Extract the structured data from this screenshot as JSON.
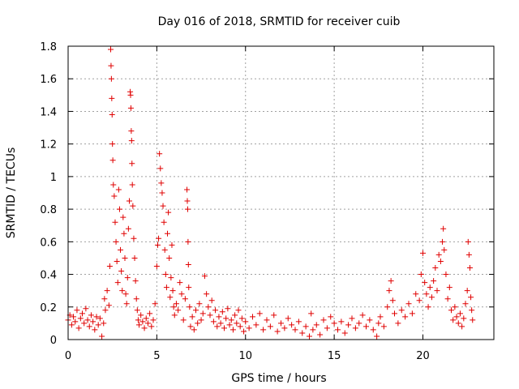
{
  "chart_data": {
    "type": "scatter",
    "title": "Day 016 of 2018, SRMTID for receiver cuib",
    "xlabel": "GPS time / hours",
    "ylabel": "SRMTID / TECUs",
    "xlim": [
      0,
      24
    ],
    "ylim": [
      0,
      1.8
    ],
    "x_ticks": [
      0,
      5,
      10,
      15,
      20
    ],
    "x_tick_labels": [
      "0",
      "5",
      "10",
      "15",
      "20"
    ],
    "y_ticks": [
      0,
      0.2,
      0.4,
      0.6,
      0.8,
      1.0,
      1.2,
      1.4,
      1.6,
      1.8
    ],
    "y_tick_labels": [
      "0",
      "0.2",
      "0.4",
      "0.6",
      "0.8",
      "1",
      "1.2",
      "1.4",
      "1.6",
      "1.8"
    ],
    "grid": true,
    "marker": "+",
    "marker_color": "#e00000",
    "series": [
      {
        "name": "SRMTID",
        "points": [
          [
            0.0,
            0.12
          ],
          [
            0.1,
            0.15
          ],
          [
            0.2,
            0.09
          ],
          [
            0.3,
            0.14
          ],
          [
            0.4,
            0.11
          ],
          [
            0.5,
            0.18
          ],
          [
            0.6,
            0.07
          ],
          [
            0.7,
            0.13
          ],
          [
            0.8,
            0.16
          ],
          [
            0.9,
            0.1
          ],
          [
            1.0,
            0.19
          ],
          [
            1.1,
            0.12
          ],
          [
            1.2,
            0.08
          ],
          [
            1.3,
            0.15
          ],
          [
            1.4,
            0.11
          ],
          [
            1.5,
            0.06
          ],
          [
            1.6,
            0.14
          ],
          [
            1.7,
            0.09
          ],
          [
            1.8,
            0.13
          ],
          [
            1.9,
            0.02
          ],
          [
            2.0,
            0.1
          ],
          [
            2.05,
            0.25
          ],
          [
            2.1,
            0.18
          ],
          [
            2.2,
            0.3
          ],
          [
            2.3,
            0.21
          ],
          [
            2.35,
            0.45
          ],
          [
            2.4,
            1.78
          ],
          [
            2.42,
            1.68
          ],
          [
            2.44,
            1.6
          ],
          [
            2.46,
            1.48
          ],
          [
            2.48,
            1.38
          ],
          [
            2.5,
            1.2
          ],
          [
            2.52,
            1.1
          ],
          [
            2.55,
            0.95
          ],
          [
            2.6,
            0.88
          ],
          [
            2.65,
            0.72
          ],
          [
            2.7,
            0.6
          ],
          [
            2.75,
            0.48
          ],
          [
            2.8,
            0.35
          ],
          [
            2.85,
            0.92
          ],
          [
            2.9,
            0.8
          ],
          [
            2.95,
            0.55
          ],
          [
            3.0,
            0.42
          ],
          [
            3.05,
            0.3
          ],
          [
            3.1,
            0.75
          ],
          [
            3.15,
            0.65
          ],
          [
            3.2,
            0.5
          ],
          [
            3.25,
            0.28
          ],
          [
            3.3,
            0.22
          ],
          [
            3.35,
            0.38
          ],
          [
            3.4,
            0.68
          ],
          [
            3.45,
            0.85
          ],
          [
            3.5,
            1.52
          ],
          [
            3.52,
            1.5
          ],
          [
            3.54,
            1.42
          ],
          [
            3.56,
            1.28
          ],
          [
            3.58,
            1.22
          ],
          [
            3.6,
            1.08
          ],
          [
            3.62,
            0.95
          ],
          [
            3.65,
            0.82
          ],
          [
            3.7,
            0.62
          ],
          [
            3.75,
            0.5
          ],
          [
            3.8,
            0.36
          ],
          [
            3.85,
            0.25
          ],
          [
            3.9,
            0.18
          ],
          [
            3.95,
            0.12
          ],
          [
            4.0,
            0.09
          ],
          [
            4.1,
            0.15
          ],
          [
            4.2,
            0.11
          ],
          [
            4.3,
            0.07
          ],
          [
            4.4,
            0.13
          ],
          [
            4.5,
            0.1
          ],
          [
            4.6,
            0.16
          ],
          [
            4.7,
            0.08
          ],
          [
            4.8,
            0.12
          ],
          [
            4.9,
            0.22
          ],
          [
            5.0,
            0.45
          ],
          [
            5.05,
            0.58
          ],
          [
            5.1,
            0.62
          ],
          [
            5.15,
            1.14
          ],
          [
            5.2,
            1.05
          ],
          [
            5.25,
            0.96
          ],
          [
            5.3,
            0.9
          ],
          [
            5.35,
            0.82
          ],
          [
            5.4,
            0.72
          ],
          [
            5.45,
            0.55
          ],
          [
            5.5,
            0.4
          ],
          [
            5.55,
            0.32
          ],
          [
            5.6,
            0.65
          ],
          [
            5.65,
            0.78
          ],
          [
            5.7,
            0.5
          ],
          [
            5.75,
            0.26
          ],
          [
            5.8,
            0.38
          ],
          [
            5.85,
            0.58
          ],
          [
            5.9,
            0.3
          ],
          [
            5.95,
            0.2
          ],
          [
            6.0,
            0.15
          ],
          [
            6.1,
            0.22
          ],
          [
            6.2,
            0.18
          ],
          [
            6.3,
            0.35
          ],
          [
            6.4,
            0.28
          ],
          [
            6.5,
            0.12
          ],
          [
            6.6,
            0.25
          ],
          [
            6.7,
            0.92
          ],
          [
            6.72,
            0.85
          ],
          [
            6.74,
            0.8
          ],
          [
            6.76,
            0.6
          ],
          [
            6.78,
            0.46
          ],
          [
            6.8,
            0.32
          ],
          [
            6.85,
            0.2
          ],
          [
            6.9,
            0.08
          ],
          [
            7.0,
            0.14
          ],
          [
            7.1,
            0.06
          ],
          [
            7.2,
            0.18
          ],
          [
            7.3,
            0.1
          ],
          [
            7.4,
            0.22
          ],
          [
            7.5,
            0.12
          ],
          [
            7.6,
            0.16
          ],
          [
            7.7,
            0.39
          ],
          [
            7.8,
            0.28
          ],
          [
            7.9,
            0.2
          ],
          [
            8.0,
            0.15
          ],
          [
            8.1,
            0.24
          ],
          [
            8.2,
            0.11
          ],
          [
            8.3,
            0.18
          ],
          [
            8.4,
            0.08
          ],
          [
            8.5,
            0.14
          ],
          [
            8.6,
            0.1
          ],
          [
            8.7,
            0.17
          ],
          [
            8.8,
            0.07
          ],
          [
            8.9,
            0.13
          ],
          [
            9.0,
            0.19
          ],
          [
            9.1,
            0.09
          ],
          [
            9.2,
            0.12
          ],
          [
            9.3,
            0.06
          ],
          [
            9.4,
            0.15
          ],
          [
            9.5,
            0.1
          ],
          [
            9.6,
            0.18
          ],
          [
            9.7,
            0.08
          ],
          [
            9.8,
            0.13
          ],
          [
            9.9,
            0.05
          ],
          [
            10.0,
            0.11
          ],
          [
            10.2,
            0.07
          ],
          [
            10.4,
            0.14
          ],
          [
            10.6,
            0.09
          ],
          [
            10.8,
            0.16
          ],
          [
            11.0,
            0.06
          ],
          [
            11.2,
            0.12
          ],
          [
            11.4,
            0.08
          ],
          [
            11.6,
            0.15
          ],
          [
            11.8,
            0.05
          ],
          [
            12.0,
            0.1
          ],
          [
            12.2,
            0.07
          ],
          [
            12.4,
            0.13
          ],
          [
            12.6,
            0.09
          ],
          [
            12.8,
            0.06
          ],
          [
            13.0,
            0.11
          ],
          [
            13.2,
            0.04
          ],
          [
            13.4,
            0.08
          ],
          [
            13.6,
            0.02
          ],
          [
            13.7,
            0.16
          ],
          [
            13.8,
            0.06
          ],
          [
            14.0,
            0.09
          ],
          [
            14.2,
            0.03
          ],
          [
            14.4,
            0.12
          ],
          [
            14.6,
            0.07
          ],
          [
            14.8,
            0.14
          ],
          [
            15.0,
            0.1
          ],
          [
            15.2,
            0.06
          ],
          [
            15.4,
            0.11
          ],
          [
            15.6,
            0.04
          ],
          [
            15.8,
            0.09
          ],
          [
            16.0,
            0.13
          ],
          [
            16.2,
            0.07
          ],
          [
            16.4,
            0.1
          ],
          [
            16.6,
            0.15
          ],
          [
            16.8,
            0.08
          ],
          [
            17.0,
            0.12
          ],
          [
            17.2,
            0.06
          ],
          [
            17.4,
            0.02
          ],
          [
            17.5,
            0.1
          ],
          [
            17.6,
            0.14
          ],
          [
            17.8,
            0.08
          ],
          [
            18.0,
            0.2
          ],
          [
            18.1,
            0.3
          ],
          [
            18.2,
            0.36
          ],
          [
            18.3,
            0.24
          ],
          [
            18.4,
            0.16
          ],
          [
            18.6,
            0.1
          ],
          [
            18.8,
            0.18
          ],
          [
            19.0,
            0.14
          ],
          [
            19.2,
            0.22
          ],
          [
            19.4,
            0.16
          ],
          [
            19.6,
            0.28
          ],
          [
            19.8,
            0.24
          ],
          [
            19.9,
            0.4
          ],
          [
            20.0,
            0.53
          ],
          [
            20.1,
            0.35
          ],
          [
            20.2,
            0.28
          ],
          [
            20.3,
            0.2
          ],
          [
            20.4,
            0.32
          ],
          [
            20.5,
            0.26
          ],
          [
            20.6,
            0.36
          ],
          [
            20.7,
            0.44
          ],
          [
            20.8,
            0.3
          ],
          [
            20.9,
            0.52
          ],
          [
            21.0,
            0.48
          ],
          [
            21.1,
            0.6
          ],
          [
            21.15,
            0.68
          ],
          [
            21.2,
            0.55
          ],
          [
            21.3,
            0.4
          ],
          [
            21.4,
            0.25
          ],
          [
            21.5,
            0.32
          ],
          [
            21.6,
            0.18
          ],
          [
            21.7,
            0.12
          ],
          [
            21.8,
            0.2
          ],
          [
            21.9,
            0.14
          ],
          [
            22.0,
            0.1
          ],
          [
            22.1,
            0.16
          ],
          [
            22.2,
            0.08
          ],
          [
            22.3,
            0.13
          ],
          [
            22.4,
            0.22
          ],
          [
            22.5,
            0.3
          ],
          [
            22.55,
            0.6
          ],
          [
            22.6,
            0.52
          ],
          [
            22.65,
            0.44
          ],
          [
            22.7,
            0.26
          ],
          [
            22.75,
            0.18
          ],
          [
            22.8,
            0.12
          ]
        ]
      }
    ]
  }
}
